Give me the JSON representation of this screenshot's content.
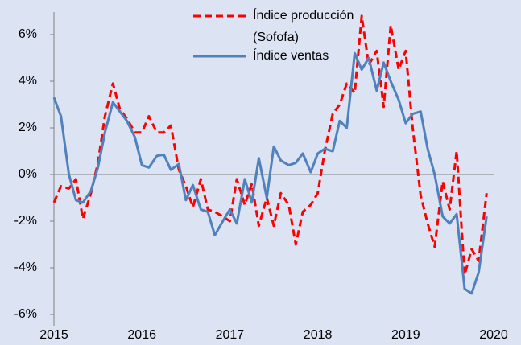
{
  "chart_data": {
    "type": "line",
    "x": [
      2015,
      2015.08,
      2015.17,
      2015.25,
      2015.33,
      2015.42,
      2015.5,
      2015.58,
      2015.67,
      2015.75,
      2015.83,
      2015.92,
      2016,
      2016.08,
      2016.17,
      2016.25,
      2016.33,
      2016.42,
      2016.5,
      2016.58,
      2016.67,
      2016.75,
      2016.83,
      2016.92,
      2017,
      2017.08,
      2017.17,
      2017.25,
      2017.33,
      2017.42,
      2017.5,
      2017.58,
      2017.67,
      2017.75,
      2017.83,
      2017.92,
      2018,
      2018.08,
      2018.17,
      2018.25,
      2018.33,
      2018.42,
      2018.5,
      2018.58,
      2018.67,
      2018.75,
      2018.83,
      2018.92,
      2019,
      2019.08,
      2019.17,
      2019.25,
      2019.33,
      2019.42,
      2019.5,
      2019.58,
      2019.67,
      2019.75,
      2019.83,
      2019.92
    ],
    "series": [
      {
        "name": "Índice producción (Sofofa)",
        "color": "#ff0000",
        "dashed": true,
        "values": [
          -1.2,
          -0.5,
          -0.6,
          -0.2,
          -1.9,
          -0.8,
          0.5,
          2.5,
          3.9,
          2.8,
          2.4,
          1.8,
          1.8,
          2.5,
          1.8,
          1.8,
          2.1,
          0.2,
          -0.5,
          -1.4,
          -0.2,
          -1.5,
          -1.6,
          -1.8,
          -2.0,
          -0.2,
          -1.3,
          -0.4,
          -2.2,
          -1.0,
          -2.2,
          -0.8,
          -1.3,
          -3.0,
          -1.6,
          -1.3,
          -0.8,
          1.0,
          2.6,
          3.0,
          3.9,
          3.5,
          6.8,
          4.7,
          5.3,
          2.9,
          6.4,
          4.5,
          5.3,
          2.0,
          -0.9,
          -2.1,
          -3.1,
          -0.3,
          -1.5,
          1.0,
          -4.3,
          -3.2,
          -3.7,
          -0.8
        ]
      },
      {
        "name": "Índice ventas",
        "color": "#4f81bd",
        "dashed": false,
        "values": [
          3.3,
          2.5,
          0.0,
          -1.1,
          -1.2,
          -0.7,
          0.3,
          1.8,
          3.1,
          2.7,
          2.3,
          1.6,
          0.4,
          0.3,
          0.8,
          0.85,
          0.2,
          0.45,
          -1.1,
          -0.45,
          -1.5,
          -1.6,
          -2.6,
          -2.0,
          -1.5,
          -2.1,
          -0.2,
          -1.2,
          0.7,
          -1.0,
          1.2,
          0.6,
          0.4,
          0.5,
          0.9,
          0.1,
          0.9,
          1.1,
          1.0,
          2.3,
          2.0,
          5.2,
          4.5,
          5.0,
          3.6,
          4.8,
          4.0,
          3.2,
          2.2,
          2.6,
          2.7,
          1.1,
          0.0,
          -1.8,
          -2.1,
          -1.7,
          -4.9,
          -5.1,
          -4.2,
          -1.8
        ]
      }
    ],
    "xlim": [
      2015,
      2020
    ],
    "xticks": [
      2015,
      2016,
      2017,
      2018,
      2019,
      2020
    ],
    "ylim": [
      -6,
      6
    ],
    "yticks": [
      {
        "value": -6,
        "label": "-6%"
      },
      {
        "value": -4,
        "label": "-4%"
      },
      {
        "value": -2,
        "label": "-2%"
      },
      {
        "value": 0,
        "label": "0%"
      },
      {
        "value": 2,
        "label": "2%"
      },
      {
        "value": 4,
        "label": "4%"
      },
      {
        "value": 6,
        "label": "6%"
      }
    ],
    "zero_line": true,
    "legend": "top"
  }
}
